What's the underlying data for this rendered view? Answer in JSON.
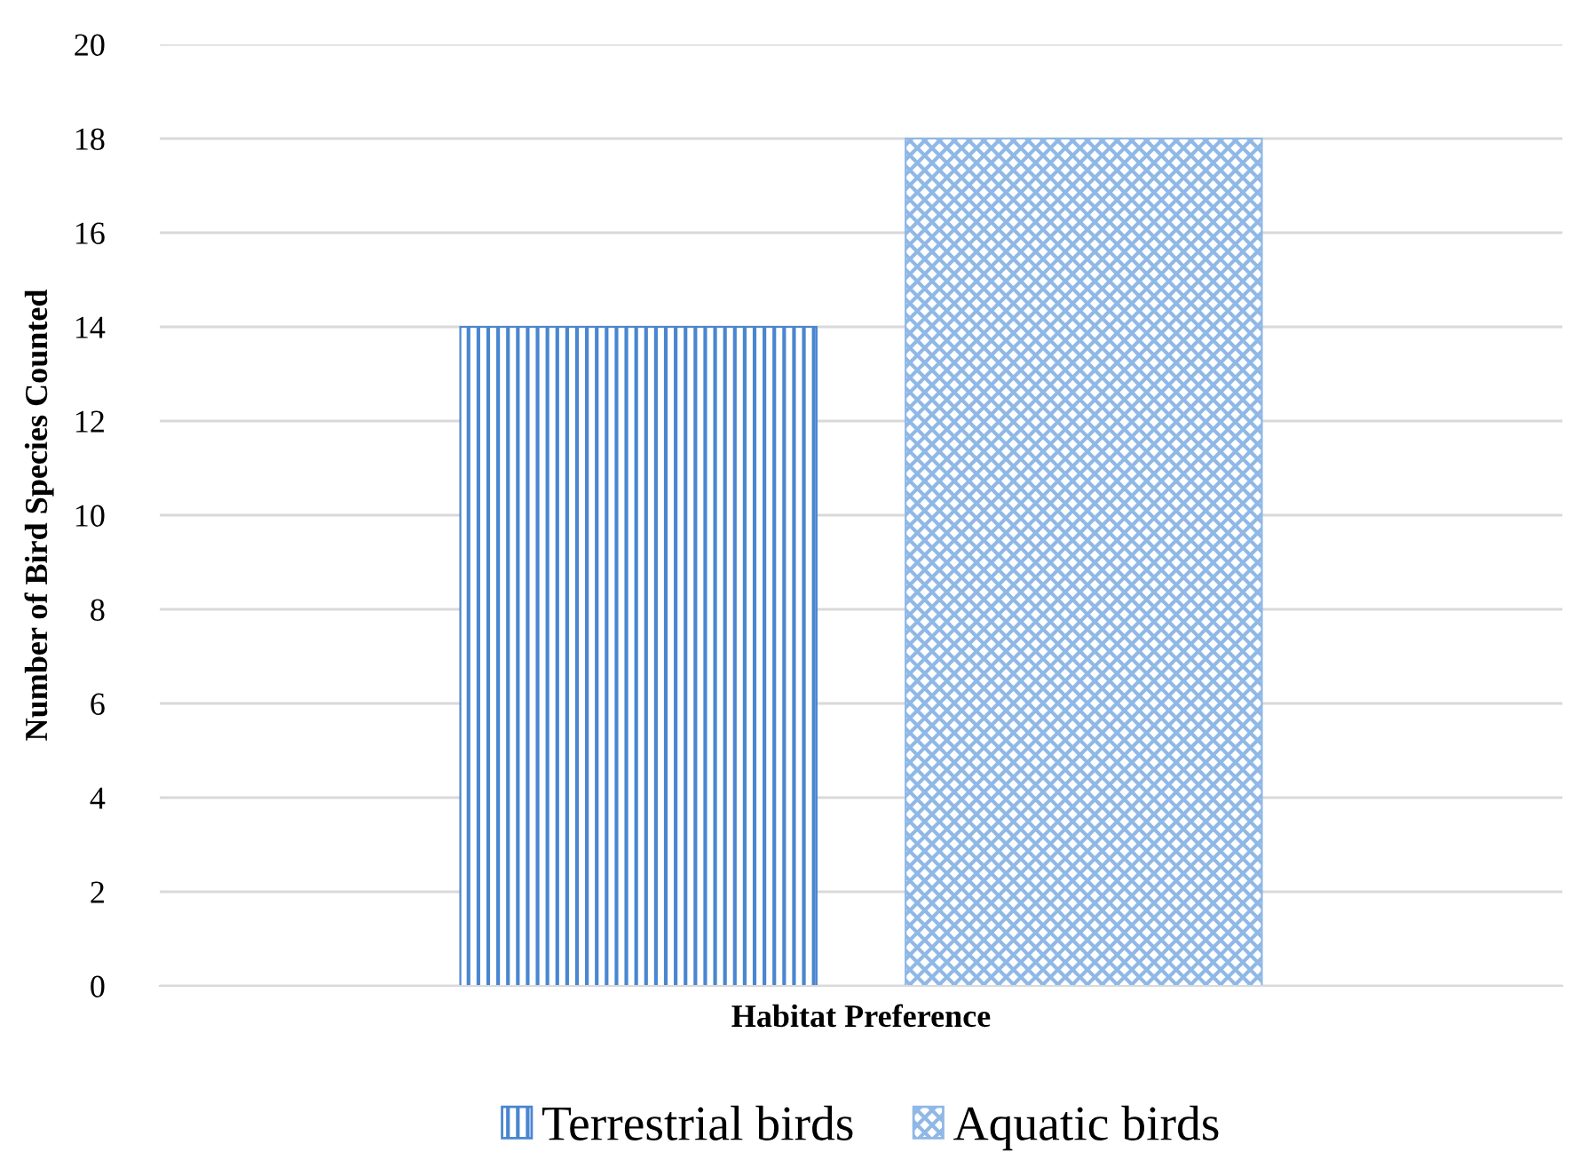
{
  "chart_data": {
    "type": "bar",
    "xlabel": "Habitat Preference",
    "ylabel": "Number of Bird Species Counted",
    "categories": [
      null
    ],
    "series": [
      {
        "name": "Terrestrial birds",
        "color": "#4a86d0",
        "values": [
          14
        ]
      },
      {
        "name": "Aquatic birds",
        "color": "#8fb8e6",
        "values": [
          18
        ]
      }
    ],
    "ylim": [
      0,
      20
    ],
    "yticks": [
      0,
      2,
      4,
      6,
      8,
      10,
      12,
      14,
      16,
      18,
      20
    ],
    "grid": "y",
    "legend": "bottom"
  }
}
